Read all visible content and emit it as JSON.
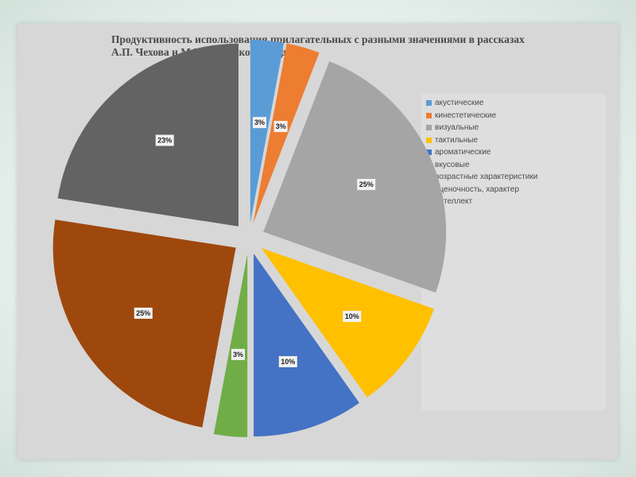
{
  "colors": {
    "card": "#d7d7d7",
    "label_bg": "#f2f2f2"
  },
  "chart_data": {
    "type": "pie",
    "exploded": true,
    "title_lines": [
      "Продуктивность использования прилагательных с разными значениями в рассказах",
      "А.П. Чехова и М.Е. Салтыкова-Щедрина"
    ],
    "legend_position": "right",
    "slices": [
      {
        "label": "акустические",
        "value": 3,
        "display": "3%",
        "color": "#5b9bd5"
      },
      {
        "label": "кинестетические",
        "value": 3,
        "display": "3%",
        "color": "#ed7d31"
      },
      {
        "label": "визуальные",
        "value": 25,
        "display": "25%",
        "color": "#a5a5a5"
      },
      {
        "label": "тактильные",
        "value": 10,
        "display": "10%",
        "color": "#ffc000"
      },
      {
        "label": "ароматические",
        "value": 10,
        "display": "10%",
        "color": "#4472c4"
      },
      {
        "label": "вкусовые",
        "value": 3,
        "display": "3%",
        "color": "#70ad47"
      },
      {
        "label": "возрастные характеристики",
        "value": 0,
        "display": "",
        "color": "#264478"
      },
      {
        "label": "оценочность, характер",
        "value": 25,
        "display": "25%",
        "color": "#9e480e"
      },
      {
        "label": "интеллект",
        "value": 23,
        "display": "23%",
        "color": "#636363"
      }
    ]
  }
}
